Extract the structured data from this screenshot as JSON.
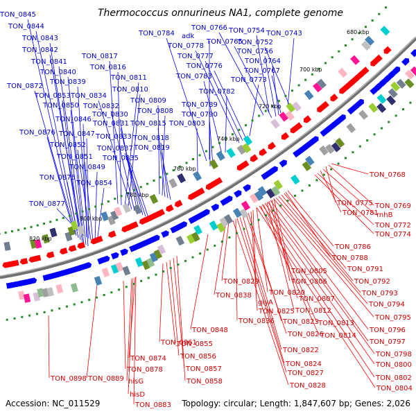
{
  "title": "Thermococcus onnurineus NA1, complete genome",
  "footer": {
    "accession": "Accession: NC_011529",
    "summary": "Topology: circular; Length: 1,847,607 bp; Genes: 2,026"
  },
  "kbp_ticks": [
    "680 kbp",
    "700 kbp",
    "720 kbp",
    "740 kbp",
    "760 kbp",
    "780 kbp",
    "800 kbp",
    "820 kbp"
  ],
  "colors": {
    "forward_strand": "#0000ff",
    "reverse_strand": "#ff0000",
    "blue_label": "#0000cc",
    "red_label": "#cc0000",
    "backbone": "#808080",
    "tick": "#228b22"
  },
  "forward_labels": [
    "TON_0845",
    "TON_0844",
    "TON_0843",
    "TON_0842",
    "TON_0841",
    "TON_0840",
    "TON_0839",
    "TON_0872",
    "TON_0853",
    "TON_0850",
    "TON_0846",
    "TON_0876",
    "TON_0847",
    "TON_0852",
    "TON_0851",
    "TON_0849",
    "TON_0875",
    "TON_0854",
    "TON_0877",
    "TON_0817",
    "TON_0816",
    "TON_0811",
    "TON_0810",
    "TON_0834",
    "TON_0832",
    "TON_0830",
    "TON_0831",
    "TON_0833",
    "TON_0837",
    "TON_0835",
    "TON_0809",
    "TON_0808",
    "TON_0815",
    "TON_0818",
    "TON_0819",
    "TON_0784",
    "adk",
    "TON_0766",
    "TON_0754",
    "TON_0743",
    "TON_0765",
    "TON_0752",
    "TON_0778",
    "TON_0777",
    "TON_0756",
    "TON_0764",
    "TON_0776",
    "TON_0767",
    "TON_0783",
    "TON_0773",
    "TON_0782",
    "TON_0789",
    "TON_0790",
    "TON_0803"
  ],
  "reverse_labels": [
    "TON_0768",
    "TON_0775",
    "TON_0769",
    "TON_0781",
    "rnhB",
    "TON_0772",
    "TON_0774",
    "TON_0786",
    "TON_0788",
    "TON_0791",
    "TON_0805",
    "TON_0792",
    "TON_0806",
    "TON_0793",
    "TON_0829",
    "TON_0820",
    "TON_0807",
    "TON_0794",
    "TON_0838",
    "glyA",
    "TON_0812",
    "TON_0795",
    "TON_0825",
    "TON_0836",
    "TON_0823",
    "TON_0813",
    "TON_0796",
    "TON_0848",
    "TON_0826",
    "TON_0814",
    "TON_0797",
    "TON_0861",
    "TON_0855",
    "TON_0822",
    "TON_0798",
    "TON_0874",
    "TON_0856",
    "TON_0824",
    "TON_0800",
    "TON_0878",
    "TON_0857",
    "TON_0827",
    "TON_0802",
    "TON_0898",
    "TON_0889",
    "hisG",
    "TON_0858",
    "TON_0828",
    "TON_0804",
    "hisD",
    "TON_0883"
  ]
}
